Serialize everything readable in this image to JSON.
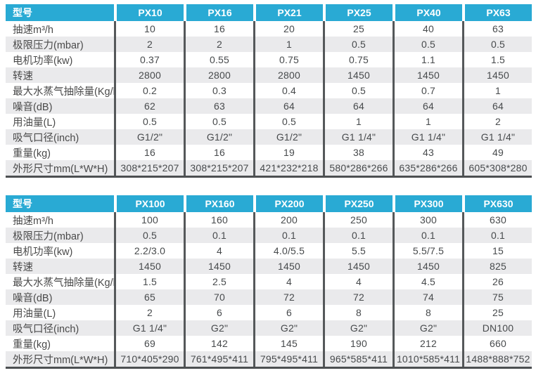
{
  "colors": {
    "header_bg": "#29aad4",
    "header_text": "#ffffff",
    "stripe": "#eaeaec",
    "divider": "#55585a",
    "table_bottom_border": "#4c4f51",
    "body_text": "#474a4c"
  },
  "tables": [
    {
      "header": {
        "model_label": "型号",
        "models": [
          "PX10",
          "PX16",
          "PX21",
          "PX25",
          "PX40",
          "PX63"
        ]
      },
      "rows": [
        {
          "label": "抽速m³/h",
          "values": [
            "10",
            "16",
            "20",
            "25",
            "40",
            "63"
          ]
        },
        {
          "label": "极限压力(mbar)",
          "values": [
            "2",
            "2",
            "1",
            "0.5",
            "0.5",
            "0.5"
          ]
        },
        {
          "label": "电机功率(kw)",
          "values": [
            "0.37",
            "0.55",
            "0.75",
            "0.75",
            "1.1",
            "1.5"
          ]
        },
        {
          "label": "转速",
          "values": [
            "2800",
            "2800",
            "2800",
            "1450",
            "1450",
            "1450"
          ]
        },
        {
          "label": "最大水蒸气抽除量(Kg/h)",
          "values": [
            "0.2",
            "0.3",
            "0.4",
            "0.5",
            "0.7",
            "1"
          ]
        },
        {
          "label": "噪音(dB)",
          "values": [
            "62",
            "63",
            "64",
            "64",
            "64",
            "64"
          ]
        },
        {
          "label": "用油量(L)",
          "values": [
            "0.5",
            "0.5",
            "0.5",
            "1",
            "1",
            "2"
          ]
        },
        {
          "label": "吸气口径(inch)",
          "values": [
            "G1/2\"",
            "G1/2\"",
            "G1/2\"",
            "G1 1/4\"",
            "G1 1/4\"",
            "G1 1/4\""
          ]
        },
        {
          "label": "重量(kg)",
          "values": [
            "16",
            "16",
            "19",
            "38",
            "43",
            "49"
          ]
        },
        {
          "label": "外形尺寸mm(L*W*H)",
          "values": [
            "308*215*207",
            "308*215*207",
            "421*232*218",
            "580*286*266",
            "635*286*266",
            "605*308*280"
          ]
        }
      ]
    },
    {
      "header": {
        "model_label": "型号",
        "models": [
          "PX100",
          "PX160",
          "PX200",
          "PX250",
          "PX300",
          "PX630"
        ]
      },
      "rows": [
        {
          "label": "抽速m³/h",
          "values": [
            "100",
            "160",
            "200",
            "250",
            "300",
            "630"
          ]
        },
        {
          "label": "极限压力(mbar)",
          "values": [
            "0.5",
            "0.1",
            "0.1",
            "0.1",
            "0.1",
            "0.1"
          ]
        },
        {
          "label": "电机功率(kw)",
          "values": [
            "2.2/3.0",
            "4",
            "4.0/5.5",
            "5.5",
            "5.5/7.5",
            "15"
          ]
        },
        {
          "label": "转速",
          "values": [
            "1450",
            "1450",
            "1450",
            "1450",
            "1450",
            "825"
          ]
        },
        {
          "label": "最大水蒸气抽除量(Kg/h)",
          "values": [
            "1.5",
            "2.5",
            "4",
            "4",
            "4.5",
            "26"
          ]
        },
        {
          "label": "噪音(dB)",
          "values": [
            "65",
            "70",
            "72",
            "72",
            "74",
            "75"
          ]
        },
        {
          "label": "用油量(L)",
          "values": [
            "2",
            "6",
            "6",
            "8",
            "8",
            "25"
          ]
        },
        {
          "label": "吸气口径(inch)",
          "values": [
            "G1 1/4\"",
            "G2\"",
            "G2\"",
            "G2\"",
            "G2\"",
            "DN100"
          ]
        },
        {
          "label": "重量(kg)",
          "values": [
            "69",
            "142",
            "145",
            "190",
            "212",
            "660"
          ]
        },
        {
          "label": "外形尺寸mm(L*W*H)",
          "values": [
            "710*405*290",
            "761*495*411",
            "795*495*411",
            "965*585*411",
            "1010*585*411",
            "1488*888*752"
          ]
        }
      ]
    }
  ]
}
